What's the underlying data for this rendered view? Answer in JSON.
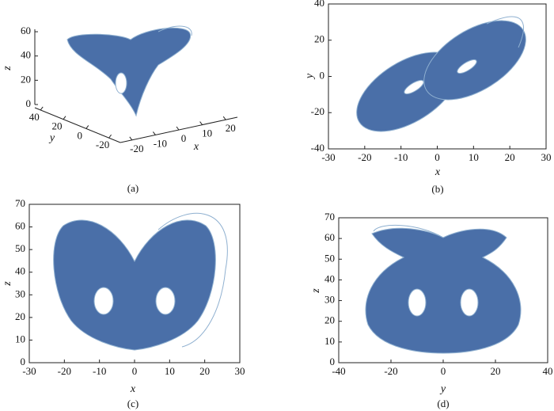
{
  "chart_data": [
    {
      "type": "3d-line",
      "caption": "(a)",
      "xlabel": "x",
      "ylabel": "y",
      "zlabel": "z",
      "color": "#4a6fa8",
      "xlim": [
        -25,
        25
      ],
      "ylim": [
        -30,
        45
      ],
      "zlim": [
        0,
        62
      ],
      "xticks": [
        -20,
        -10,
        0,
        10,
        20
      ],
      "yticks": [
        -20,
        0,
        20,
        40
      ],
      "zticks": [
        0,
        20,
        40,
        60
      ]
    },
    {
      "type": "line",
      "caption": "(b)",
      "xlabel": "x",
      "ylabel": "y",
      "color": "#4a6fa8",
      "xlim": [
        -30,
        30
      ],
      "ylim": [
        -40,
        40
      ],
      "xticks": [
        -30,
        -20,
        -10,
        0,
        10,
        20,
        30
      ],
      "yticks": [
        -40,
        -20,
        0,
        20,
        40
      ]
    },
    {
      "type": "line",
      "caption": "(c)",
      "xlabel": "x",
      "ylabel": "z",
      "color": "#4a6fa8",
      "xlim": [
        -30,
        30
      ],
      "ylim": [
        0,
        70
      ],
      "xticks": [
        -30,
        -20,
        -10,
        0,
        10,
        20,
        30
      ],
      "yticks": [
        0,
        10,
        20,
        30,
        40,
        50,
        60,
        70
      ]
    },
    {
      "type": "line",
      "caption": "(d)",
      "xlabel": "y",
      "ylabel": "z",
      "color": "#4a6fa8",
      "xlim": [
        -40,
        40
      ],
      "ylim": [
        0,
        70
      ],
      "xticks": [
        -40,
        -20,
        0,
        20,
        40
      ],
      "yticks": [
        0,
        10,
        20,
        30,
        40,
        50,
        60,
        70
      ]
    }
  ]
}
